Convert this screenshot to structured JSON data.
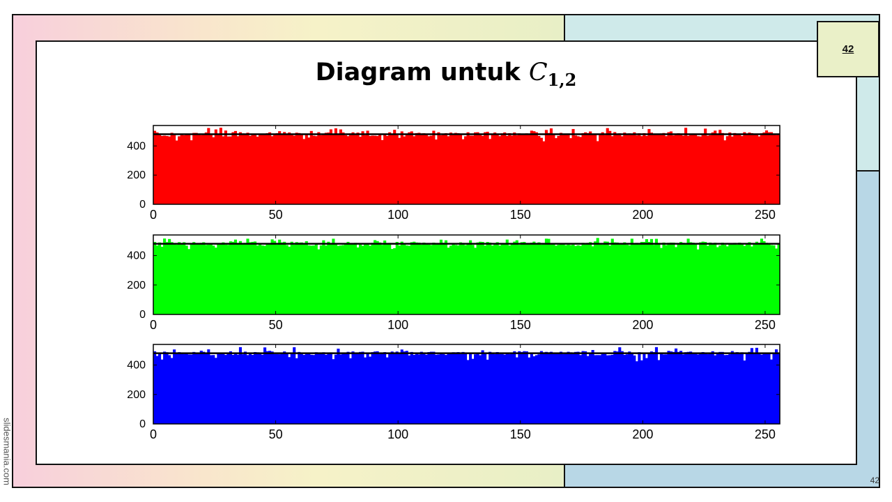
{
  "slide": {
    "title_text": "Diagram untuk ",
    "title_var": "C",
    "title_sub": "1,2",
    "page_box_number": "42",
    "page_number": "42",
    "watermark": "slidesmania.com"
  },
  "chart_data": [
    {
      "type": "bar",
      "channel": "red",
      "color": "#ff0000",
      "x_range": [
        0,
        255
      ],
      "ylim": [
        0,
        540
      ],
      "xticks": [
        0,
        50,
        100,
        150,
        200,
        250
      ],
      "yticks": [
        0,
        200,
        400
      ],
      "mean_line": 480,
      "value_range": [
        430,
        525
      ],
      "bins": 256
    },
    {
      "type": "bar",
      "channel": "green",
      "color": "#00ff00",
      "x_range": [
        0,
        255
      ],
      "ylim": [
        0,
        540
      ],
      "xticks": [
        0,
        50,
        100,
        150,
        200,
        250
      ],
      "yticks": [
        0,
        200,
        400
      ],
      "mean_line": 480,
      "value_range": [
        440,
        520
      ],
      "bins": 256
    },
    {
      "type": "bar",
      "channel": "blue",
      "color": "#0000ff",
      "x_range": [
        0,
        255
      ],
      "ylim": [
        0,
        540
      ],
      "xticks": [
        0,
        50,
        100,
        150,
        200,
        250
      ],
      "yticks": [
        0,
        200,
        400
      ],
      "mean_line": 480,
      "value_range": [
        425,
        525
      ],
      "bins": 256
    }
  ]
}
